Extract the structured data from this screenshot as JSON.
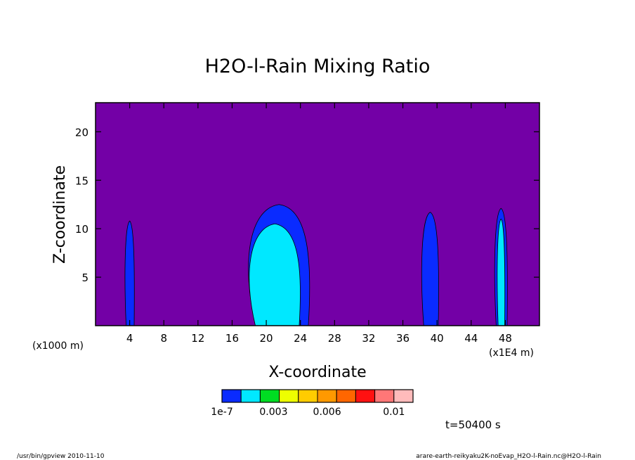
{
  "chart_data": {
    "type": "heatmap",
    "title": "H2O-l-Rain Mixing Ratio",
    "xlabel": "X-coordinate",
    "ylabel": "Z-coordinate",
    "x_unit_label": "(x1000 m)",
    "x_scale_note": "(x1E4 m)",
    "xlim": [
      0,
      52
    ],
    "ylim": [
      0,
      23
    ],
    "xticks": [
      4,
      8,
      12,
      16,
      20,
      24,
      28,
      32,
      36,
      40,
      44,
      48
    ],
    "yticks": [
      5,
      10,
      15,
      20
    ],
    "background_color": "#7300a6",
    "colorbar": {
      "colors": [
        "#0a2bff",
        "#00e8ff",
        "#00dd22",
        "#eeff00",
        "#ffcc00",
        "#ff9900",
        "#ff6600",
        "#ff1111",
        "#ff7777",
        "#ffbbbb"
      ],
      "labels": [
        {
          "text": "1e-7",
          "at": 0
        },
        {
          "text": "0.003",
          "at": 0.27
        },
        {
          "text": "0.006",
          "at": 0.55
        },
        {
          "text": "0.01",
          "at": 0.9
        }
      ]
    },
    "rain_regions": [
      {
        "x_center": 4.0,
        "z_top": 10.8,
        "level": 1
      },
      {
        "x_center": 21.5,
        "z_top": 12.5,
        "level": 1
      },
      {
        "x_center": 21.0,
        "z_top": 10.5,
        "level": 2
      },
      {
        "x_center": 39.2,
        "z_top": 11.7,
        "level": 1
      },
      {
        "x_center": 47.5,
        "z_top": 12.1,
        "level": 1
      },
      {
        "x_center": 47.5,
        "z_top": 11.0,
        "level": 2
      }
    ]
  },
  "time_label": "t=50400 s",
  "footer": {
    "left": "/usr/bin/gpview  2010-11-10",
    "right": "arare-earth-reikyaku2K-noEvap_H2O-l-Rain.nc@H2O-l-Rain"
  }
}
